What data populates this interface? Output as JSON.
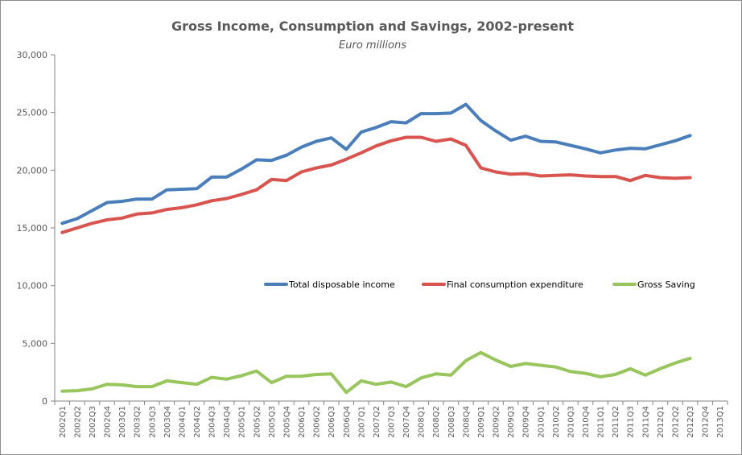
{
  "chart_data": {
    "type": "line",
    "title": "Gross Income, Consumption and Savings, 2002-present",
    "subtitle": "Euro millions",
    "xlabel": "",
    "ylabel": "",
    "ylim": [
      0,
      30000
    ],
    "yticks": [
      0,
      5000,
      10000,
      15000,
      20000,
      25000,
      30000
    ],
    "ytick_labels": [
      "0",
      "5,000",
      "10,000",
      "15,000",
      "20,000",
      "25,000",
      "30,000"
    ],
    "grid": false,
    "legend_position": "middle-right",
    "categories": [
      "2002Q1",
      "2002Q2",
      "2002Q3",
      "2002Q4",
      "2003Q1",
      "2003Q2",
      "2003Q3",
      "2003Q4",
      "2004Q1",
      "2004Q2",
      "2004Q3",
      "2004Q4",
      "2005Q1",
      "2005Q2",
      "2005Q3",
      "2005Q4",
      "2006Q1",
      "2006Q2",
      "2006Q3",
      "2006Q4",
      "2007Q1",
      "2007Q2",
      "2007Q3",
      "2007Q4",
      "2008Q1",
      "2008Q2",
      "2008Q3",
      "2008Q4",
      "2009Q1",
      "2009Q2",
      "2009Q3",
      "2009Q4",
      "2010Q1",
      "2010Q2",
      "2010Q3",
      "2010Q4",
      "2011Q1",
      "2011Q2",
      "2011Q3",
      "2011Q4",
      "2012Q1",
      "2012Q2",
      "2012Q3",
      "2012Q4",
      "2013Q1"
    ],
    "series": [
      {
        "name": "Total disposable income",
        "color": "#4a7ebb",
        "values": [
          15400,
          15800,
          16500,
          17200,
          17300,
          17500,
          17500,
          18300,
          18350,
          18400,
          19400,
          19400,
          20100,
          20900,
          20850,
          21300,
          22000,
          22500,
          22800,
          21800,
          23300,
          23700,
          24200,
          24100,
          24900,
          24900,
          24950,
          25700,
          24300,
          23400,
          22600,
          22950,
          22500,
          22450,
          22150,
          21850,
          21500,
          21750,
          21900,
          21850,
          22200,
          22550,
          23000,
          null,
          null
        ]
      },
      {
        "name": "Final consumption expenditure",
        "color": "#d9534f",
        "values": [
          14600,
          15000,
          15400,
          15700,
          15850,
          16200,
          16300,
          16600,
          16750,
          17000,
          17350,
          17550,
          17900,
          18300,
          19200,
          19100,
          19850,
          20200,
          20450,
          20950,
          21500,
          22100,
          22550,
          22850,
          22850,
          22500,
          22700,
          22150,
          20200,
          19850,
          19650,
          19700,
          19500,
          19550,
          19600,
          19500,
          19450,
          19450,
          19100,
          19550,
          19350,
          19300,
          19350,
          null,
          null
        ]
      },
      {
        "name": "Gross Saving",
        "color": "#98c55c",
        "values": [
          850,
          900,
          1050,
          1450,
          1400,
          1250,
          1250,
          1750,
          1600,
          1450,
          2050,
          1900,
          2200,
          2600,
          1600,
          2150,
          2150,
          2300,
          2350,
          750,
          1750,
          1450,
          1650,
          1250,
          2000,
          2350,
          2250,
          3500,
          4200,
          3550,
          3000,
          3250,
          3100,
          2950,
          2550,
          2400,
          2100,
          2300,
          2800,
          2250,
          2800,
          3300,
          3700,
          null,
          null
        ]
      }
    ]
  }
}
